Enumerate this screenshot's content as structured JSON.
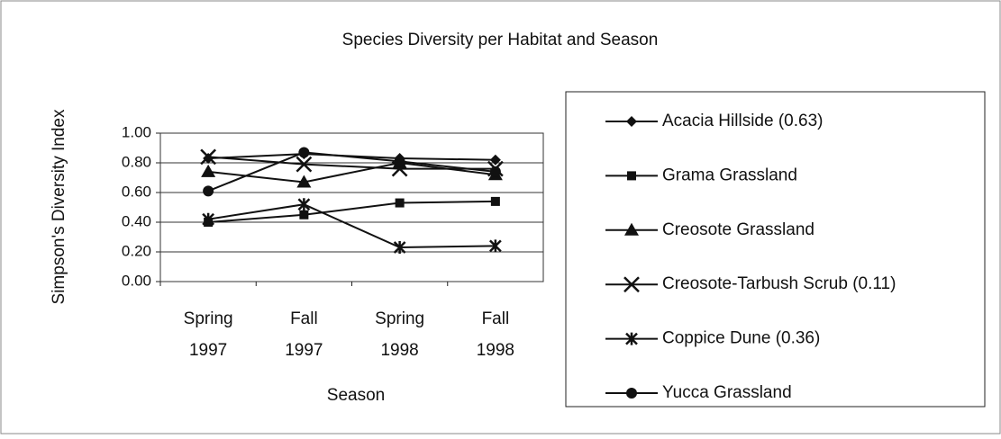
{
  "chart_data": {
    "type": "line",
    "title": "Species Diversity per Habitat and Season",
    "xlabel": "Season",
    "ylabel": "Simpson's Diversity Index",
    "categories": [
      "Spring 1997",
      "Fall 1997",
      "Spring 1998",
      "Fall 1998"
    ],
    "ylim": [
      0,
      1
    ],
    "yticks": [
      {
        "value": 0,
        "label": "0.00"
      },
      {
        "value": 0.2,
        "label": "0.20"
      },
      {
        "value": 0.4,
        "label": "0.40"
      },
      {
        "value": 0.6,
        "label": "0.60"
      },
      {
        "value": 0.8,
        "label": "0.80"
      },
      {
        "value": 1,
        "label": "1.00"
      }
    ],
    "grid": true,
    "legend": "right",
    "series": [
      {
        "name": "Acacia Hillside (0.63)",
        "color": "#111111",
        "marker": "diamond",
        "values": [
          0.83,
          0.86,
          0.83,
          0.82
        ]
      },
      {
        "name": "Grama Grassland",
        "color": "#111111",
        "marker": "square",
        "values": [
          0.4,
          0.45,
          0.53,
          0.54
        ]
      },
      {
        "name": "Creosote Grassland",
        "color": "#111111",
        "marker": "triangle",
        "values": [
          0.74,
          0.67,
          0.8,
          0.72
        ]
      },
      {
        "name": "Creosote-Tarbush Scrub (0.11)",
        "color": "#111111",
        "marker": "x",
        "values": [
          0.84,
          0.79,
          0.76,
          0.76
        ]
      },
      {
        "name": "Coppice Dune (0.36)",
        "color": "#111111",
        "marker": "star",
        "values": [
          0.42,
          0.52,
          0.23,
          0.24
        ]
      },
      {
        "name": "Yucca Grassland",
        "color": "#111111",
        "marker": "circle",
        "values": [
          0.61,
          0.87,
          0.81,
          0.74
        ]
      }
    ]
  }
}
